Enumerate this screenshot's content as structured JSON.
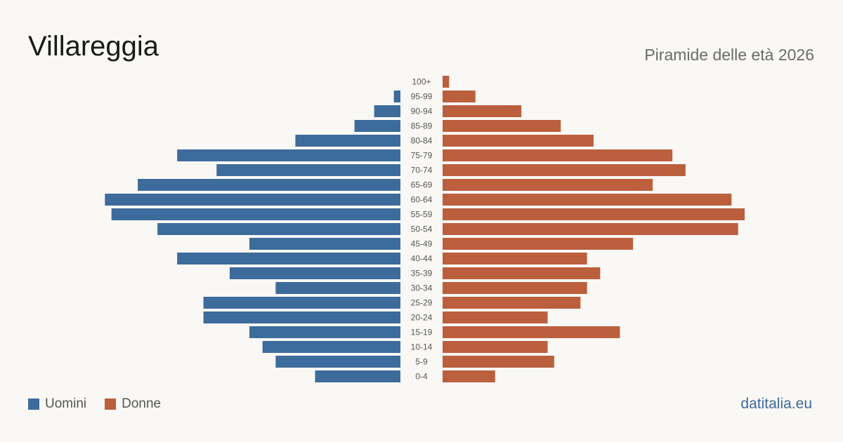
{
  "header": {
    "title": "Villareggia",
    "subtitle": "Piramide delle età 2026"
  },
  "legend": {
    "men_label": "Uomini",
    "women_label": "Donne"
  },
  "footer": {
    "source": "datitalia.eu"
  },
  "colors": {
    "men": "#3d6b9c",
    "women": "#bb5f3d",
    "background": "#f9f8f4"
  },
  "chart_data": {
    "type": "bar",
    "orientation": "horizontal-pyramid",
    "categories": [
      "100+",
      "95-99",
      "90-94",
      "85-89",
      "80-84",
      "75-79",
      "70-74",
      "65-69",
      "60-64",
      "55-59",
      "50-54",
      "45-49",
      "40-44",
      "35-39",
      "30-34",
      "25-29",
      "20-24",
      "15-19",
      "10-14",
      "5-9",
      "0-4"
    ],
    "series": [
      {
        "name": "Uomini",
        "values": [
          0,
          1,
          4,
          7,
          16,
          34,
          28,
          40,
          45,
          44,
          37,
          23,
          34,
          26,
          19,
          30,
          30,
          23,
          21,
          19,
          13
        ]
      },
      {
        "name": "Donne",
        "values": [
          1,
          5,
          12,
          18,
          23,
          35,
          37,
          32,
          44,
          46,
          45,
          29,
          22,
          24,
          22,
          21,
          16,
          27,
          16,
          17,
          8
        ]
      }
    ],
    "legend_position": "bottom-left",
    "grid": false
  }
}
